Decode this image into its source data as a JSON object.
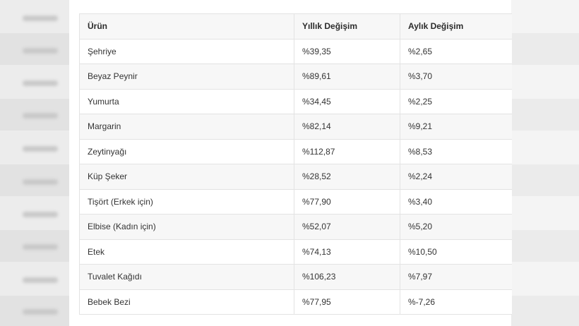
{
  "table": {
    "headers": [
      "Ürün",
      "Yıllık Değişim",
      "Aylık Değişim"
    ],
    "rows": [
      [
        "Şehriye",
        "%39,35",
        "%2,65"
      ],
      [
        "Beyaz Peynir",
        "%89,61",
        "%3,70"
      ],
      [
        "Yumurta",
        "%34,45",
        "%2,25"
      ],
      [
        "Margarin",
        "%82,14",
        "%9,21"
      ],
      [
        "Zeytinyağı",
        "%112,87",
        "%8,53"
      ],
      [
        "Küp Şeker",
        "%28,52",
        "%2,24"
      ],
      [
        "Tişört (Erkek için)",
        "%77,90",
        "%3,40"
      ],
      [
        "Elbise (Kadın için)",
        "%52,07",
        "%5,20"
      ],
      [
        "Etek",
        "%74,13",
        "%10,50"
      ],
      [
        "Tuvalet Kağıdı",
        "%106,23",
        "%7,97"
      ],
      [
        "Bebek Bezi",
        "%77,95",
        "%-7,26"
      ]
    ]
  },
  "colors": {
    "header_bg": "#f7f7f7",
    "row_alt_bg": "#f7f7f7",
    "border": "#e3e3e3",
    "text": "#333333"
  }
}
